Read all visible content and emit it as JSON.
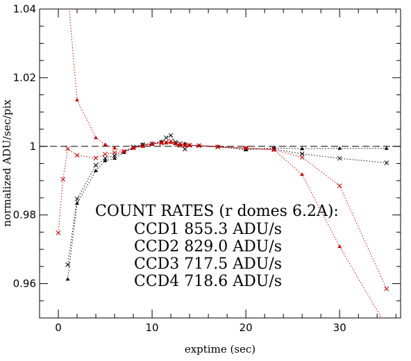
{
  "chart_data": {
    "type": "scatter",
    "xlabel": "exptime (sec)",
    "ylabel": "normalized ADU/sec/pix",
    "xlim": [
      -2,
      36.5
    ],
    "ylim": [
      0.95,
      1.04
    ],
    "x_ticks": [
      0,
      10,
      20,
      30
    ],
    "x_tick_labels": [
      "0",
      "10",
      "20",
      "30"
    ],
    "y_ticks": [
      0.96,
      0.98,
      1.0,
      1.02,
      1.04
    ],
    "y_tick_labels": [
      "0.96",
      "0.98",
      "1",
      "1.02",
      "1.04"
    ],
    "reference_line": 1.0,
    "annotation": [
      "COUNT RATES (r domes 6.2A):",
      "CCD1 855.3 ADU/s",
      "CCD2 829.0 ADU/s",
      "CCD3 717.5 ADU/s",
      "CCD4 718.6 ADU/s"
    ],
    "series": [
      {
        "color": "#000000",
        "marker": "triangle",
        "x": [
          1,
          2,
          4,
          5,
          6,
          7,
          8,
          9,
          10,
          11,
          11.5,
          12,
          12.5,
          13,
          13.5,
          14,
          15,
          17,
          20,
          23,
          26,
          30,
          35
        ],
        "y": [
          0.9613,
          0.9834,
          0.9929,
          0.9958,
          0.9965,
          0.9982,
          0.9995,
          1.0005,
          1.0008,
          1.0014,
          1.001,
          1.0012,
          1.0008,
          1.0005,
          1.0008,
          1.0003,
          1.0002,
          1.0,
          0.999,
          0.9995,
          0.9993,
          0.9994,
          0.9994
        ]
      },
      {
        "color": "#000000",
        "marker": "cross",
        "x": [
          1,
          2,
          4,
          5,
          6,
          7,
          8,
          9,
          10,
          11,
          11.5,
          12,
          12.5,
          13,
          13.5,
          14,
          15,
          17,
          20,
          23,
          26,
          30,
          35
        ],
        "y": [
          0.9655,
          0.9847,
          0.9945,
          0.9965,
          0.9973,
          0.9985,
          0.9998,
          1.0005,
          1.0007,
          1.0012,
          1.0025,
          1.0032,
          1.0012,
          1.0008,
          0.9992,
          1.0003,
          1.0002,
          0.9998,
          0.9992,
          0.9992,
          0.9978,
          0.9965,
          0.9952
        ]
      },
      {
        "color": "#cc0000",
        "marker": "triangle",
        "x": [
          1,
          2,
          4,
          5,
          6,
          7,
          8,
          9,
          10,
          11,
          11.5,
          12,
          12.5,
          13,
          13.5,
          14,
          15,
          17,
          20,
          23,
          26,
          30,
          35
        ],
        "y": [
          1.045,
          1.0135,
          1.0025,
          1.0005,
          0.9995,
          0.9985,
          0.9995,
          1.0,
          1.0005,
          1.0012,
          1.001,
          1.0012,
          1.0008,
          1.0005,
          1.0002,
          1.0003,
          1.0002,
          1.0,
          0.9995,
          0.999,
          0.9918,
          0.9708,
          0.9475
        ]
      },
      {
        "color": "#cc0000",
        "marker": "cross",
        "x": [
          0,
          0.5,
          1,
          2,
          4,
          5,
          6,
          7,
          8,
          9,
          10,
          11,
          11.5,
          12,
          12.5,
          13,
          13.5,
          14,
          15,
          17,
          20,
          23,
          26,
          30,
          35
        ],
        "y": [
          0.9748,
          0.9904,
          0.9993,
          0.9974,
          0.9966,
          0.9977,
          0.9982,
          0.9985,
          0.9995,
          1.0002,
          1.0008,
          1.0008,
          1.0012,
          1.0015,
          1.0008,
          1.0002,
          1.0005,
          1.0003,
          1.0002,
          0.9998,
          0.9995,
          0.999,
          0.9968,
          0.9885,
          0.9585
        ]
      }
    ]
  }
}
